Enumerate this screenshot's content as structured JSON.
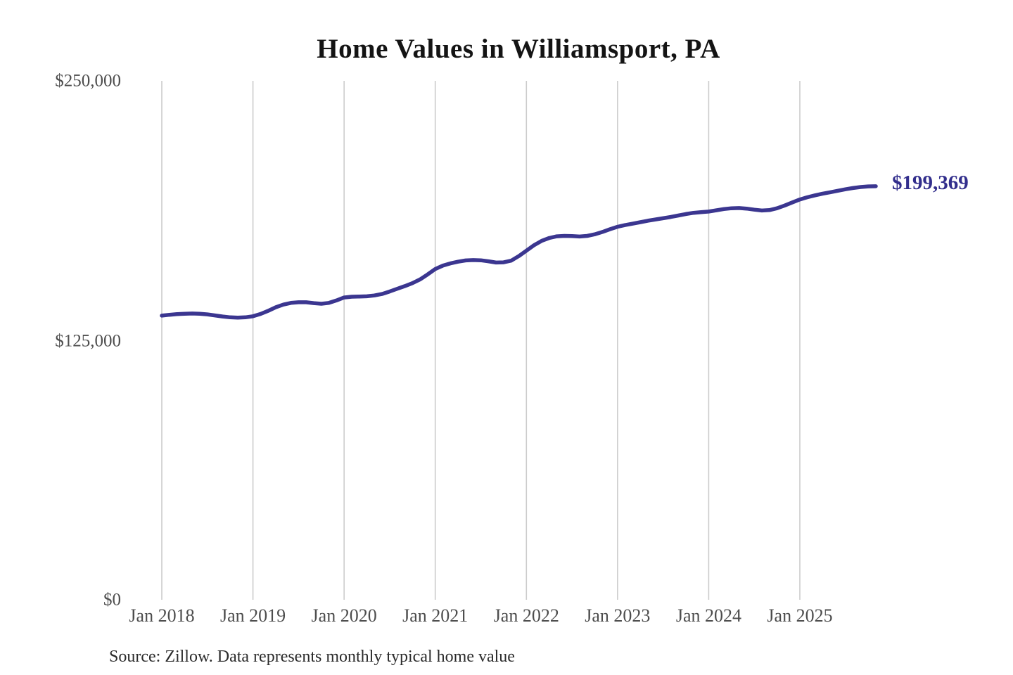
{
  "title": "Home Values in Williamsport, PA",
  "annotation_label": "$199,369",
  "source_note": "Source: Zillow. Data represents monthly typical home value",
  "colors": {
    "line": "#3b3690",
    "annotation": "#322e8c",
    "gridline": "#cccccc",
    "axis_label": "#4d4d4d",
    "title": "#141414",
    "source": "#2b2b2b",
    "background": "#ffffff"
  },
  "chart_data": {
    "type": "line",
    "title": "Home Values in Williamsport, PA",
    "xlabel": "",
    "ylabel": "",
    "ylim": [
      0,
      250000
    ],
    "y_tick_labels": [
      "$0",
      "$125,000",
      "$250,000"
    ],
    "y_tick_values": [
      0,
      125000,
      250000
    ],
    "x_tick_labels": [
      "Jan 2018",
      "Jan 2019",
      "Jan 2020",
      "Jan 2021",
      "Jan 2022",
      "Jan 2023",
      "Jan 2024",
      "Jan 2025"
    ],
    "x_tick_month_indices": [
      0,
      12,
      24,
      36,
      48,
      60,
      72,
      84
    ],
    "grid": "vertical-only",
    "legend": false,
    "last_value": 199369,
    "last_value_label": "$199,369",
    "series": [
      {
        "name": "Monthly typical home value",
        "months": [
          "2018-01",
          "2018-02",
          "2018-03",
          "2018-04",
          "2018-05",
          "2018-06",
          "2018-07",
          "2018-08",
          "2018-09",
          "2018-10",
          "2018-11",
          "2018-12",
          "2019-01",
          "2019-02",
          "2019-03",
          "2019-04",
          "2019-05",
          "2019-06",
          "2019-07",
          "2019-08",
          "2019-09",
          "2019-10",
          "2019-11",
          "2019-12",
          "2020-01",
          "2020-02",
          "2020-03",
          "2020-04",
          "2020-05",
          "2020-06",
          "2020-07",
          "2020-08",
          "2020-09",
          "2020-10",
          "2020-11",
          "2020-12",
          "2021-01",
          "2021-02",
          "2021-03",
          "2021-04",
          "2021-05",
          "2021-06",
          "2021-07",
          "2021-08",
          "2021-09",
          "2021-10",
          "2021-11",
          "2021-12",
          "2022-01",
          "2022-02",
          "2022-03",
          "2022-04",
          "2022-05",
          "2022-06",
          "2022-07",
          "2022-08",
          "2022-09",
          "2022-10",
          "2022-11",
          "2022-12",
          "2023-01",
          "2023-02",
          "2023-03",
          "2023-04",
          "2023-05",
          "2023-06",
          "2023-07",
          "2023-08",
          "2023-09",
          "2023-10",
          "2023-11",
          "2023-12",
          "2024-01",
          "2024-02",
          "2024-03",
          "2024-04",
          "2024-05",
          "2024-06",
          "2024-07",
          "2024-08",
          "2024-09",
          "2024-10",
          "2024-11",
          "2024-12",
          "2025-01",
          "2025-02",
          "2025-03",
          "2025-04",
          "2025-05",
          "2025-06",
          "2025-07",
          "2025-08",
          "2025-09",
          "2025-10",
          "2025-11"
        ],
        "values": [
          137200,
          137600,
          137900,
          138100,
          138200,
          138100,
          137800,
          137300,
          136800,
          136400,
          136200,
          136400,
          136900,
          138000,
          139500,
          141200,
          142500,
          143300,
          143600,
          143600,
          143200,
          142900,
          143300,
          144500,
          145900,
          146300,
          146400,
          146500,
          146900,
          147600,
          148800,
          150100,
          151400,
          152800,
          154600,
          157000,
          159600,
          161200,
          162300,
          163100,
          163700,
          163900,
          163800,
          163300,
          162700,
          162800,
          163600,
          165800,
          168400,
          171000,
          173100,
          174500,
          175300,
          175500,
          175400,
          175200,
          175500,
          176300,
          177400,
          178700,
          179900,
          180700,
          181400,
          182100,
          182800,
          183400,
          184000,
          184600,
          185300,
          186000,
          186600,
          186900,
          187200,
          187800,
          188400,
          188800,
          188900,
          188600,
          188100,
          187700,
          187900,
          188800,
          190100,
          191600,
          193000,
          194100,
          195000,
          195800,
          196500,
          197200,
          197900,
          198500,
          199000,
          199300,
          199369
        ]
      }
    ]
  }
}
